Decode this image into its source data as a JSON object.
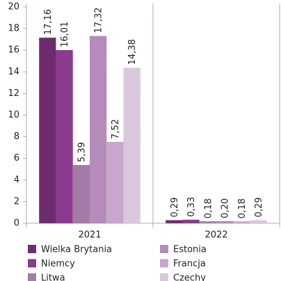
{
  "chart_data": {
    "type": "bar",
    "categories": [
      "2021",
      "2022"
    ],
    "series": [
      {
        "name": "Wielka Brytania",
        "color": "#6e2c6e",
        "values": [
          17.16,
          0.29
        ],
        "value_labels": [
          "17,16",
          "0,29"
        ]
      },
      {
        "name": "Niemcy",
        "color": "#8a3a8f",
        "values": [
          16.01,
          0.33
        ],
        "value_labels": [
          "16,01",
          "0,33"
        ]
      },
      {
        "name": "Litwa",
        "color": "#a47aa8",
        "values": [
          5.39,
          0.18
        ],
        "value_labels": [
          "5,39",
          "0,18"
        ]
      },
      {
        "name": "Estonia",
        "color": "#b58cb9",
        "values": [
          17.32,
          0.2
        ],
        "value_labels": [
          "17,32",
          "0,20"
        ]
      },
      {
        "name": "Francja",
        "color": "#c9a7cc",
        "values": [
          7.52,
          0.18
        ],
        "value_labels": [
          "7,52",
          "0,18"
        ]
      },
      {
        "name": "Czechy",
        "color": "#dac6dd",
        "values": [
          14.38,
          0.29
        ],
        "value_labels": [
          "14,38",
          "0,29"
        ]
      }
    ],
    "ylim": [
      0,
      20
    ],
    "yticks": [
      0,
      2,
      4,
      6,
      8,
      10,
      12,
      14,
      16,
      18,
      20
    ]
  }
}
